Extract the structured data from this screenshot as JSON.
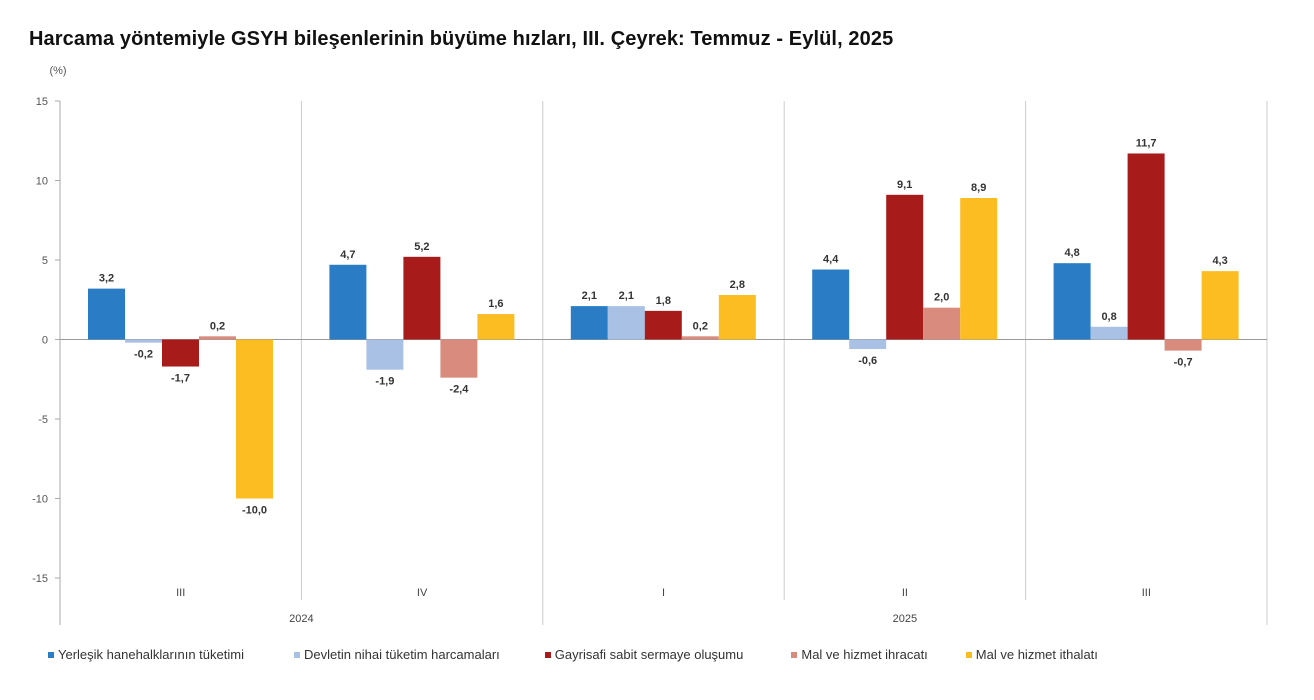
{
  "chart_data": {
    "type": "bar",
    "title": "Harcama yöntemiyle GSYH bileşenlerinin büyüme hızları, III. Çeyrek: Temmuz - Eylül, 2025",
    "ylabel": "(%)",
    "xlabel": "",
    "ylim": [
      -15,
      15
    ],
    "yticks": [
      15,
      10,
      5,
      0,
      -5,
      -10,
      -15
    ],
    "grid": false,
    "legend_position": "bottom",
    "categories": [
      "III",
      "IV",
      "I",
      "II",
      "III"
    ],
    "year_groups": [
      {
        "label": "2024",
        "quarters": 2
      },
      {
        "label": "2025",
        "quarters": 3
      }
    ],
    "series": [
      {
        "name": "Yerleşik hanehalklarının tüketimi",
        "color": "#2a7dc4",
        "values": [
          3.2,
          4.7,
          2.1,
          4.4,
          4.8
        ]
      },
      {
        "name": "Devletin nihai tüketim harcamaları",
        "color": "#a9c1e4",
        "values": [
          -0.2,
          -1.9,
          2.1,
          -0.6,
          0.8
        ]
      },
      {
        "name": "Gayrisafi sabit sermaye oluşumu",
        "color": "#a81b1b",
        "values": [
          -1.7,
          5.2,
          1.8,
          9.1,
          11.7
        ]
      },
      {
        "name": "Mal ve hizmet ihracatı",
        "color": "#d98c7d",
        "values": [
          0.2,
          -2.4,
          0.2,
          2.0,
          -0.7
        ]
      },
      {
        "name": "Mal ve hizmet ithalatı",
        "color": "#fbbd22",
        "values": [
          -10.0,
          1.6,
          2.8,
          8.9,
          4.3
        ]
      }
    ]
  }
}
